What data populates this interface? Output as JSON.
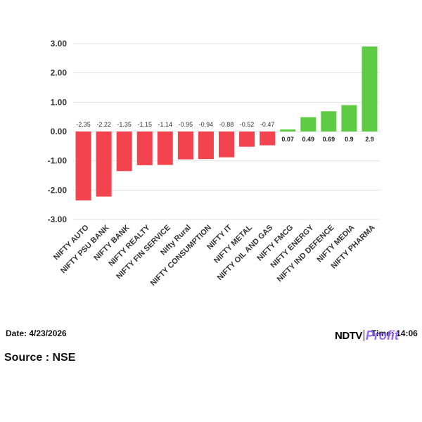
{
  "chart_data": {
    "type": "bar",
    "categories": [
      "NIFTY AUTO",
      "NIFTY PSU BANK",
      "NIFTY BANK",
      "NIFTY REALTY",
      "NIFTY FIN SERVICE",
      "Nifty Rural",
      "NIFTY CONSUMPTION",
      "NIFTY IT",
      "NIFTY METAL",
      "NIFTY OIL AND GAS",
      "NIFTY FMCG",
      "NIFTY ENERGY",
      "NIFTY IND DEFENCE",
      "NIFTY MEDIA",
      "NIFTY PHARMA"
    ],
    "values": [
      -2.35,
      -2.22,
      -1.35,
      -1.15,
      -1.14,
      -0.95,
      -0.94,
      -0.88,
      -0.52,
      -0.47,
      0.07,
      0.49,
      0.69,
      0.9,
      2.9
    ],
    "data_labels": [
      "-2.35",
      "-2.22",
      "-1.35",
      "-1.15",
      "-1.14",
      "-0.95",
      "-0.94",
      "-0.88",
      "-0.52",
      "-0.47",
      "0.07",
      "0.49",
      "0.69",
      "0.9",
      "2.9"
    ],
    "ylim": [
      -3,
      3
    ],
    "yticks": [
      3,
      2,
      1,
      0,
      -1,
      -2,
      -3
    ],
    "ytick_labels": [
      "3.00",
      "2.00",
      "1.00",
      "0.00",
      "-1.00",
      "-2.00",
      "-3.00"
    ],
    "grid": true,
    "colors": {
      "negative": "#f2434f",
      "positive": "#5ecb45"
    }
  },
  "footer": {
    "date": "Date: 4/23/2026",
    "source": "Source : NSE",
    "time": "Time: 14:06",
    "logo_ndtv": "NDTV",
    "logo_profit": "Profit"
  }
}
